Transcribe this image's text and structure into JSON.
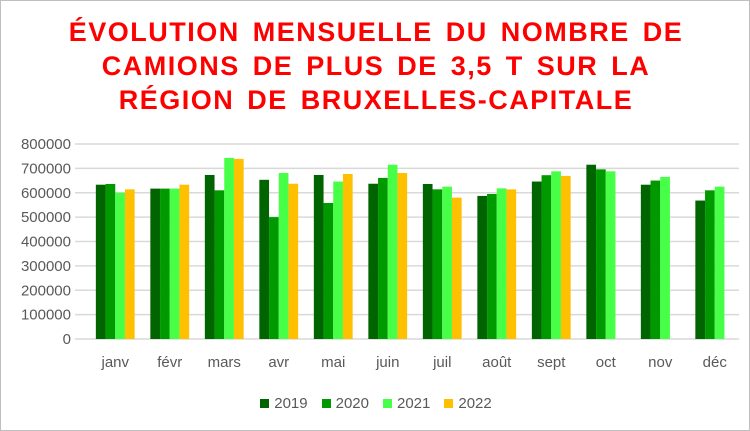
{
  "chart_data": {
    "type": "bar",
    "title": [
      "ÉVOLUTION MENSUELLE DU NOMBRE DE",
      "CAMIONS DE PLUS DE 3,5 T SUR LA",
      "RÉGION DE BRUXELLES-CAPITALE"
    ],
    "categories": [
      "janv",
      "févr",
      "mars",
      "avr",
      "mai",
      "juin",
      "juil",
      "août",
      "sept",
      "oct",
      "nov",
      "déc"
    ],
    "ylim": [
      0,
      800000
    ],
    "yticks": [
      "0",
      "100000",
      "200000",
      "300000",
      "400000",
      "500000",
      "600000",
      "700000",
      "800000"
    ],
    "grid": true,
    "legend_position": "bottom",
    "series": [
      {
        "name": "2019",
        "color": "#006400",
        "values": [
          633000,
          617000,
          673000,
          653000,
          673000,
          637000,
          636000,
          587000,
          646000,
          715000,
          633000,
          568000
        ]
      },
      {
        "name": "2020",
        "color": "#009900",
        "values": [
          636000,
          617000,
          610000,
          500000,
          558000,
          661000,
          614000,
          595000,
          672000,
          696000,
          650000,
          610000
        ]
      },
      {
        "name": "2021",
        "color": "#47ff47",
        "values": [
          600000,
          617000,
          743000,
          681000,
          646000,
          715000,
          625000,
          618000,
          688000,
          688000,
          665000,
          625000
        ]
      },
      {
        "name": "2022",
        "color": "#ffc000",
        "values": [
          614000,
          633000,
          739000,
          637000,
          677000,
          681000,
          580000,
          614000,
          669000,
          null,
          null,
          null
        ]
      }
    ]
  }
}
